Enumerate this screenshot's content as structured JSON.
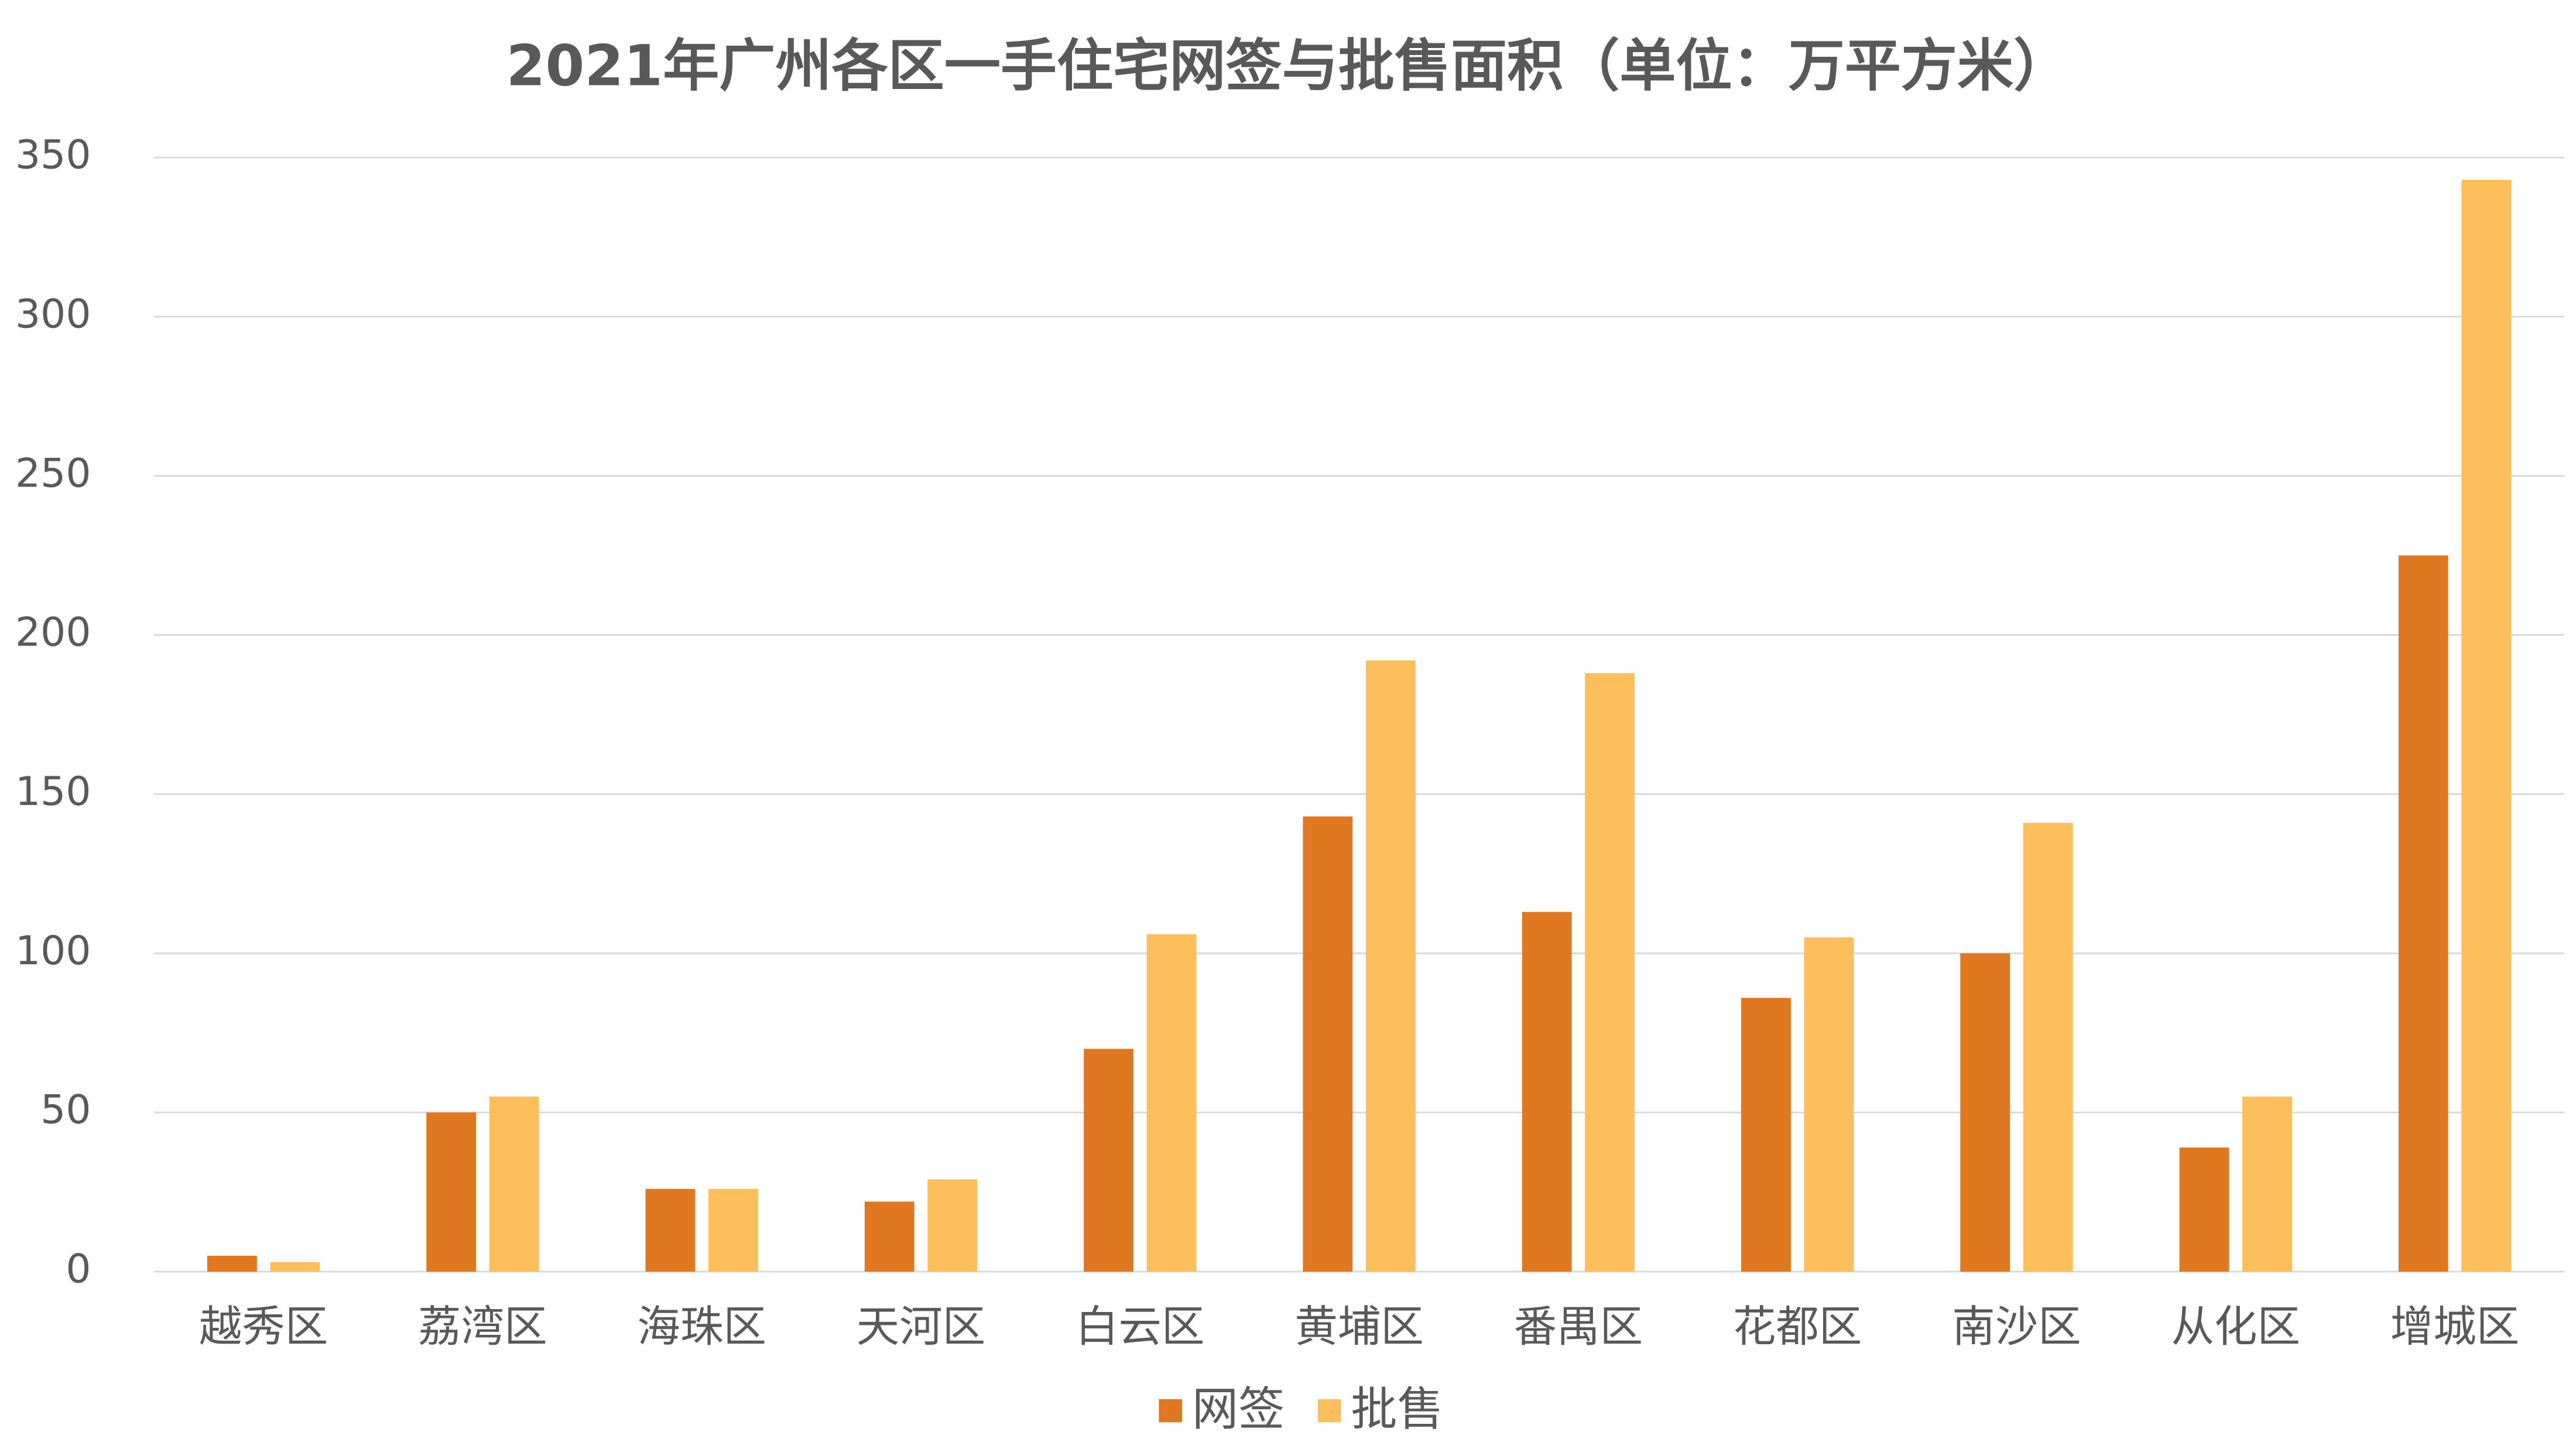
{
  "chart_data": {
    "type": "bar",
    "title": "2021年广州各区一手住宅网签与批售面积（单位：万平方米）",
    "categories": [
      "越秀区",
      "荔湾区",
      "海珠区",
      "天河区",
      "白云区",
      "黄埔区",
      "番禺区",
      "花都区",
      "南沙区",
      "从化区",
      "增城区"
    ],
    "series": [
      {
        "name": "网签",
        "color": "#e07822",
        "values": [
          5,
          50,
          26,
          22,
          70,
          143,
          113,
          86,
          100,
          39,
          225
        ]
      },
      {
        "name": "批售",
        "color": "#fcbf5c",
        "values": [
          3,
          55,
          26,
          29,
          106,
          192,
          188,
          105,
          141,
          55,
          343
        ]
      }
    ],
    "ylim": [
      0,
      350
    ],
    "yticks": [
      0,
      50,
      100,
      150,
      200,
      250,
      300,
      350
    ],
    "grid": true,
    "legend": "bottom"
  }
}
